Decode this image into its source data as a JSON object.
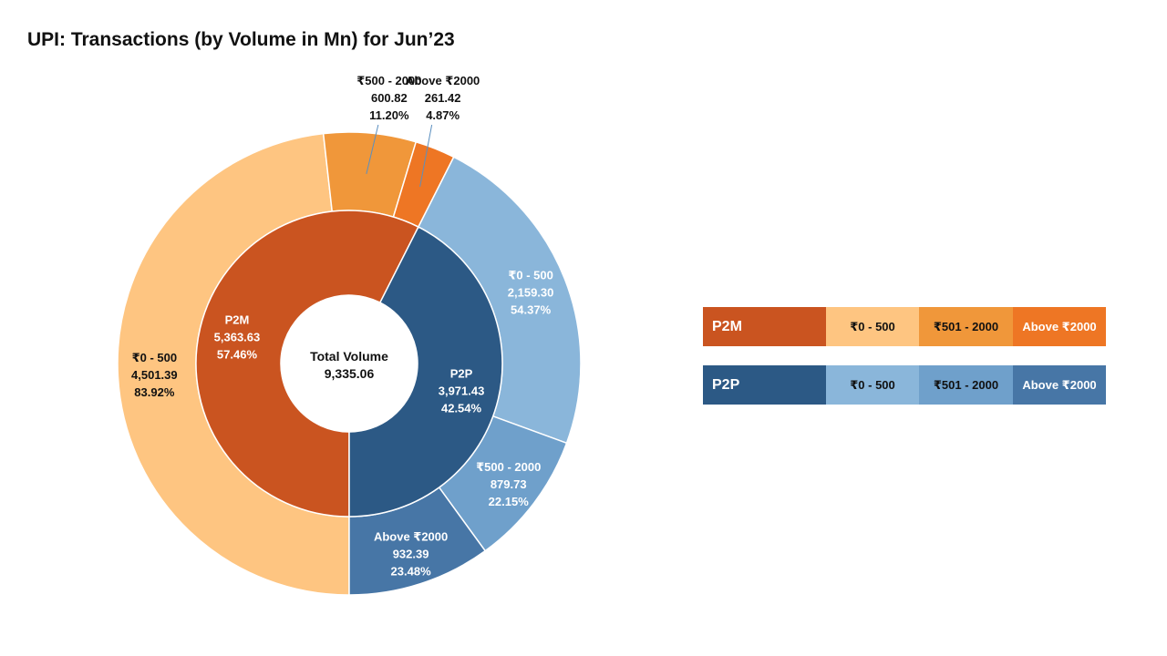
{
  "title": "UPI: Transactions (by Volume in Mn) for Jun’23",
  "chart_data": {
    "type": "donut",
    "center": {
      "label": "Total Volume",
      "value": "9,335.06"
    },
    "inner": [
      {
        "name": "P2M",
        "value": 5363.63,
        "value_label": "5,363.63",
        "pct": "57.46%",
        "color": "#CA5420"
      },
      {
        "name": "P2P",
        "value": 3971.43,
        "value_label": "3,971.43",
        "pct": "42.54%",
        "color": "#2C5985"
      }
    ],
    "outer": [
      {
        "group": "P2M",
        "name": "₹0 - 500",
        "value": 4501.39,
        "value_label": "4,501.39",
        "pct": "83.92%",
        "color": "#FEC581"
      },
      {
        "group": "P2M",
        "name": "₹500 - 2000",
        "value": 600.82,
        "value_label": "600.82",
        "pct": "11.20%",
        "color": "#F0973A"
      },
      {
        "group": "P2M",
        "name": "Above ₹2000",
        "value": 261.42,
        "value_label": "261.42",
        "pct": "4.87%",
        "color": "#EE7624"
      },
      {
        "group": "P2P",
        "name": "₹0 - 500",
        "value": 2159.3,
        "value_label": "2,159.30",
        "pct": "54.37%",
        "color": "#8AB6DA"
      },
      {
        "group": "P2P",
        "name": "₹500 - 2000",
        "value": 879.73,
        "value_label": "879.73",
        "pct": "22.15%",
        "color": "#6FA0CB"
      },
      {
        "group": "P2P",
        "name": "Above ₹2000",
        "value": 932.39,
        "value_label": "932.39",
        "pct": "23.48%",
        "color": "#4776A6"
      }
    ]
  },
  "legend": [
    {
      "name": "P2M",
      "color": "#CA5420",
      "items": [
        {
          "label": "₹0 - 500",
          "color": "#FEC581",
          "text_color": "#111111"
        },
        {
          "label": "₹501 - 2000",
          "color": "#F0973A",
          "text_color": "#111111"
        },
        {
          "label": "Above ₹2000",
          "color": "#EE7624",
          "text_color": "#ffffff"
        }
      ]
    },
    {
      "name": "P2P",
      "color": "#2C5985",
      "items": [
        {
          "label": "₹0 - 500",
          "color": "#8AB6DA",
          "text_color": "#111111"
        },
        {
          "label": "₹501 - 2000",
          "color": "#6FA0CB",
          "text_color": "#111111"
        },
        {
          "label": "Above ₹2000",
          "color": "#4776A6",
          "text_color": "#ffffff"
        }
      ]
    }
  ]
}
